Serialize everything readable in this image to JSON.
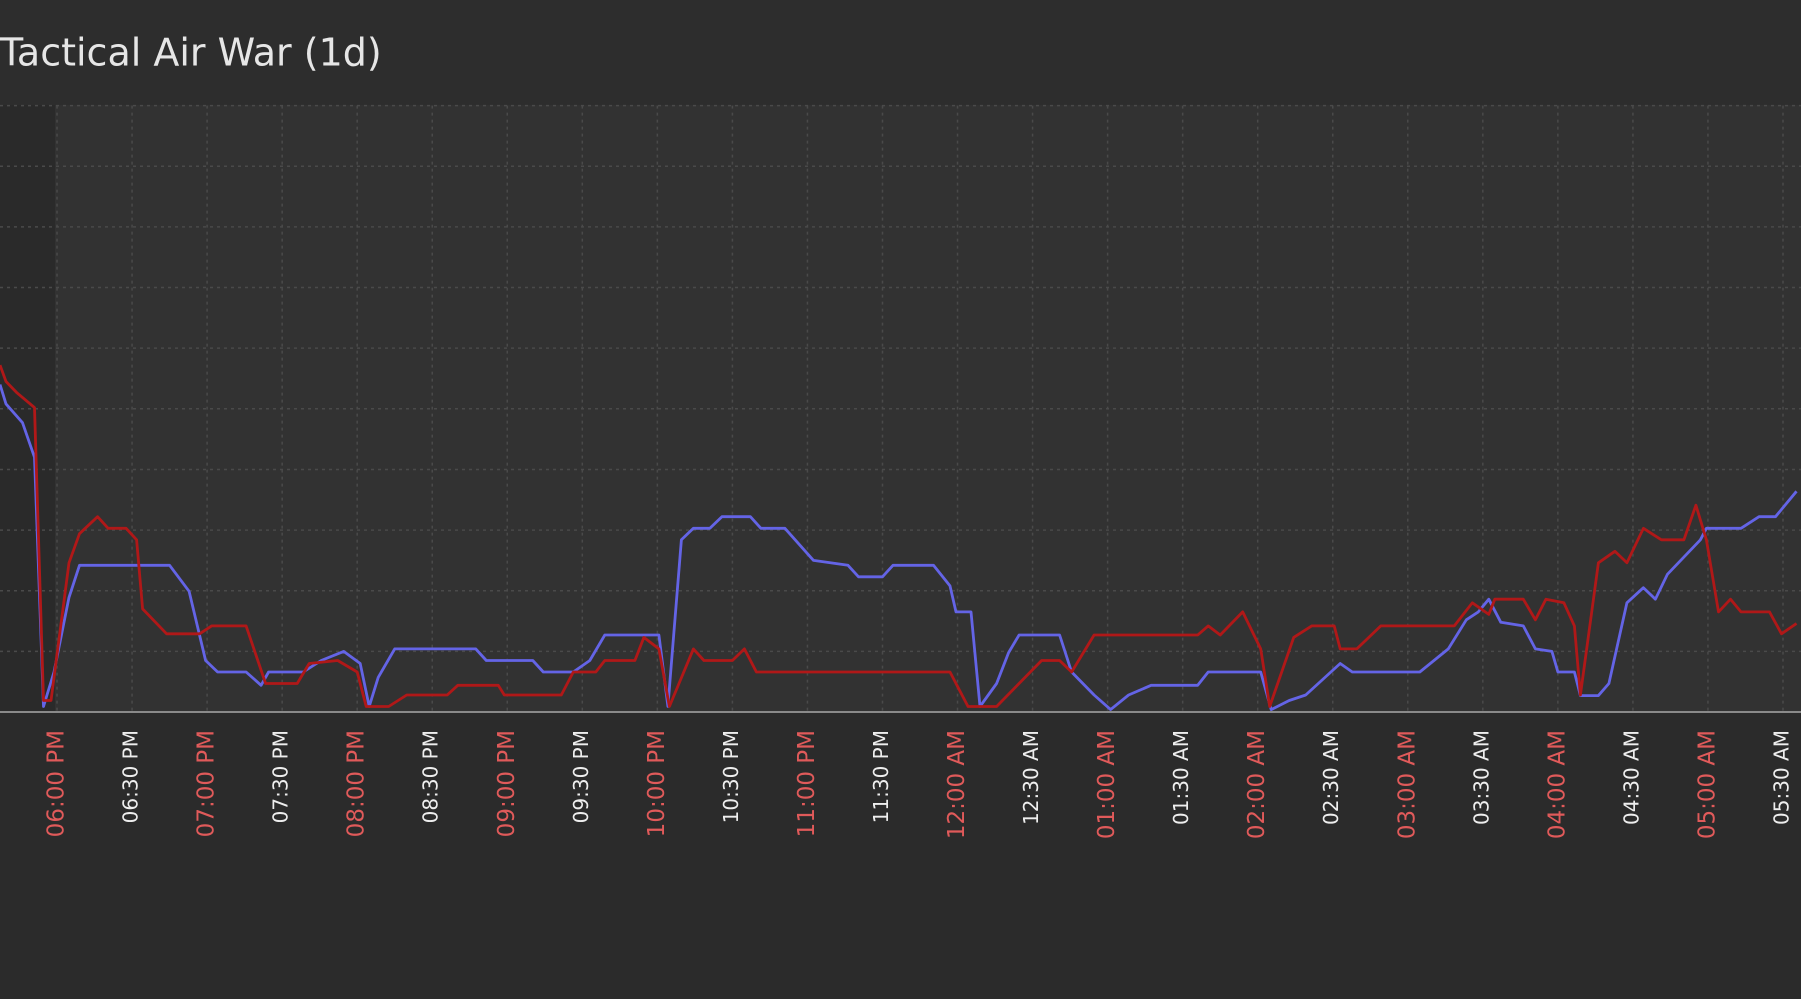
{
  "chart_data": {
    "type": "line",
    "title": "Tactical Air War (1d)",
    "xlim": [
      17.62,
      29.62
    ],
    "ylim": [
      0,
      10
    ],
    "yticks": [
      0,
      1,
      2,
      3,
      4,
      5,
      6,
      7,
      8,
      9,
      10
    ],
    "xticks": [
      {
        "value": 18,
        "label": "06:00 PM"
      },
      {
        "value": 18.5,
        "label": "06:30 PM"
      },
      {
        "value": 19,
        "label": "07:00 PM"
      },
      {
        "value": 19.5,
        "label": "07:30 PM"
      },
      {
        "value": 20,
        "label": "08:00 PM"
      },
      {
        "value": 20.5,
        "label": "08:30 PM"
      },
      {
        "value": 21,
        "label": "09:00 PM"
      },
      {
        "value": 21.5,
        "label": "09:30 PM"
      },
      {
        "value": 22,
        "label": "10:00 PM"
      },
      {
        "value": 22.5,
        "label": "10:30 PM"
      },
      {
        "value": 23,
        "label": "11:00 PM"
      },
      {
        "value": 23.5,
        "label": "11:30 PM"
      },
      {
        "value": 24,
        "label": "12:00 AM"
      },
      {
        "value": 24.5,
        "label": "12:30 AM"
      },
      {
        "value": 25,
        "label": "01:00 AM"
      },
      {
        "value": 25.5,
        "label": "01:30 AM"
      },
      {
        "value": 26,
        "label": "02:00 AM"
      },
      {
        "value": 26.5,
        "label": "02:30 AM"
      },
      {
        "value": 27,
        "label": "03:00 AM"
      },
      {
        "value": 27.5,
        "label": "03:30 AM"
      },
      {
        "value": 28,
        "label": "04:00 AM"
      },
      {
        "value": 28.5,
        "label": "04:30 AM"
      },
      {
        "value": 29,
        "label": "05:00 AM"
      },
      {
        "value": 29.5,
        "label": "05:30 AM"
      }
    ],
    "grid": true,
    "hour_label_color": "#e05a5a",
    "half_hour_label_color": "#eeeeee",
    "series": [
      {
        "color": "#6464e6",
        "x": [
          17.62,
          17.66,
          17.77,
          17.85,
          17.91,
          17.98,
          18.08,
          18.15,
          18.75,
          18.88,
          18.99,
          19.07,
          19.26,
          19.36,
          19.41,
          19.64,
          19.76,
          19.91,
          20.02,
          20.08,
          20.14,
          20.25,
          20.79,
          20.86,
          21.17,
          21.24,
          21.44,
          21.55,
          21.65,
          22.01,
          22.07,
          22.16,
          22.24,
          22.35,
          22.43,
          22.62,
          22.69,
          22.85,
          23.04,
          23.27,
          23.34,
          23.5,
          23.57,
          23.84,
          23.95,
          23.99,
          24.09,
          24.15,
          24.26,
          24.34,
          24.41,
          24.68,
          24.76,
          24.91,
          25.02,
          25.14,
          25.29,
          25.6,
          25.67,
          26.02,
          26.09,
          26.21,
          26.32,
          26.55,
          26.63,
          27.08,
          27.27,
          27.39,
          27.47,
          27.54,
          27.62,
          27.77,
          27.85,
          27.96,
          28.0,
          28.11,
          28.15,
          28.27,
          28.34,
          28.46,
          28.57,
          28.65,
          28.73,
          28.95,
          28.99,
          29.22,
          29.34,
          29.45,
          29.59
        ],
        "values": [
          5.4,
          5.08,
          4.77,
          4.2,
          0.09,
          0.66,
          1.89,
          2.42,
          2.42,
          1.99,
          0.85,
          0.66,
          0.66,
          0.44,
          0.66,
          0.66,
          0.85,
          1.0,
          0.8,
          0.09,
          0.57,
          1.04,
          1.04,
          0.85,
          0.85,
          0.66,
          0.66,
          0.85,
          1.27,
          1.27,
          0.09,
          2.84,
          3.03,
          3.03,
          3.22,
          3.22,
          3.03,
          3.03,
          2.5,
          2.42,
          2.23,
          2.23,
          2.42,
          2.42,
          2.08,
          1.65,
          1.65,
          0.09,
          0.47,
          0.98,
          1.27,
          1.27,
          0.66,
          0.28,
          0.04,
          0.28,
          0.44,
          0.44,
          0.66,
          0.66,
          0.04,
          0.19,
          0.28,
          0.8,
          0.66,
          0.66,
          1.04,
          1.52,
          1.65,
          1.86,
          1.48,
          1.42,
          1.04,
          1.0,
          0.66,
          0.66,
          0.27,
          0.27,
          0.47,
          1.8,
          2.05,
          1.86,
          2.27,
          2.84,
          3.03,
          3.03,
          3.22,
          3.22,
          3.64
        ]
      },
      {
        "color": "#b01818",
        "x": [
          17.62,
          17.66,
          17.73,
          17.85,
          17.91,
          17.96,
          18.08,
          18.15,
          18.27,
          18.34,
          18.46,
          18.53,
          18.57,
          18.73,
          18.95,
          19.03,
          19.26,
          19.39,
          19.6,
          19.68,
          19.87,
          20.0,
          20.06,
          20.21,
          20.33,
          20.6,
          20.67,
          20.94,
          20.98,
          21.36,
          21.44,
          21.59,
          21.65,
          21.85,
          21.91,
          22.01,
          22.08,
          22.24,
          22.31,
          22.5,
          22.58,
          22.66,
          23.95,
          24.07,
          24.26,
          24.56,
          24.68,
          24.76,
          24.91,
          25.6,
          25.67,
          25.75,
          25.9,
          26.02,
          26.08,
          26.24,
          26.36,
          26.51,
          26.55,
          26.66,
          26.82,
          27.31,
          27.43,
          27.54,
          27.58,
          27.77,
          27.85,
          27.92,
          28.04,
          28.11,
          28.15,
          28.27,
          28.38,
          28.46,
          28.57,
          28.69,
          28.84,
          28.92,
          28.99,
          29.07,
          29.15,
          29.22,
          29.41,
          29.49,
          29.59
        ],
        "values": [
          5.72,
          5.45,
          5.27,
          5.02,
          0.19,
          0.19,
          2.46,
          2.94,
          3.22,
          3.03,
          3.03,
          2.84,
          1.7,
          1.29,
          1.29,
          1.42,
          1.42,
          0.47,
          0.47,
          0.8,
          0.85,
          0.66,
          0.09,
          0.09,
          0.28,
          0.28,
          0.44,
          0.44,
          0.28,
          0.28,
          0.66,
          0.66,
          0.85,
          0.85,
          1.23,
          1.04,
          0.09,
          1.04,
          0.85,
          0.85,
          1.04,
          0.66,
          0.66,
          0.09,
          0.09,
          0.85,
          0.85,
          0.66,
          1.27,
          1.27,
          1.42,
          1.27,
          1.65,
          1.04,
          0.09,
          1.23,
          1.42,
          1.42,
          1.04,
          1.04,
          1.42,
          1.42,
          1.8,
          1.61,
          1.86,
          1.86,
          1.52,
          1.86,
          1.8,
          1.42,
          0.28,
          2.46,
          2.65,
          2.46,
          3.03,
          2.84,
          2.84,
          3.41,
          2.84,
          1.65,
          1.86,
          1.65,
          1.65,
          1.29,
          1.46
        ]
      }
    ]
  }
}
